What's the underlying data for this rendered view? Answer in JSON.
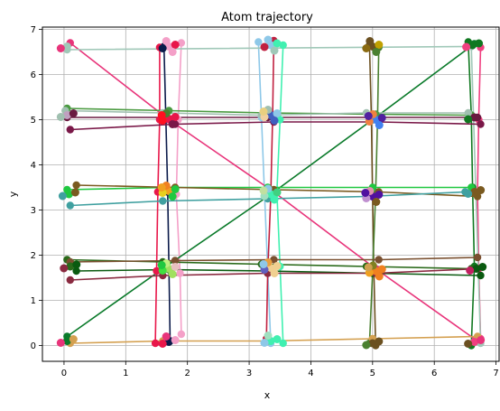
{
  "chart_data": {
    "type": "line",
    "title": "Atom trajectory",
    "xlabel": "x",
    "ylabel": "y",
    "xlim": [
      -0.35,
      7.05
    ],
    "ylim": [
      -0.35,
      7.05
    ],
    "xticks": [
      "0",
      "1",
      "2",
      "3",
      "4",
      "5",
      "6",
      "7"
    ],
    "yticks": [
      "0",
      "1",
      "2",
      "3",
      "4",
      "5",
      "6",
      "7"
    ],
    "grid": true,
    "series": [
      {
        "color": "#0b1a4a",
        "points": [
          [
            1.62,
            6.62
          ],
          [
            1.65,
            5.0
          ],
          [
            1.68,
            3.4
          ],
          [
            1.7,
            1.7
          ],
          [
            1.72,
            0.1
          ]
        ]
      },
      {
        "color": "#e8174a",
        "points": [
          [
            1.55,
            6.6
          ],
          [
            1.55,
            5.0
          ],
          [
            1.52,
            3.4
          ],
          [
            1.5,
            1.65
          ],
          [
            1.48,
            0.05
          ]
        ]
      },
      {
        "color": "#f4a0c8",
        "points": [
          [
            1.9,
            6.7
          ],
          [
            1.85,
            5.0
          ],
          [
            1.82,
            3.35
          ],
          [
            1.88,
            1.6
          ],
          [
            1.9,
            0.25
          ]
        ]
      },
      {
        "color": "#8ec8e8",
        "points": [
          [
            3.15,
            6.72
          ],
          [
            3.2,
            5.05
          ],
          [
            3.25,
            3.3
          ],
          [
            3.3,
            1.7
          ],
          [
            3.35,
            0.05
          ]
        ]
      },
      {
        "color": "#40f0b0",
        "points": [
          [
            3.55,
            6.65
          ],
          [
            3.5,
            5.0
          ],
          [
            3.45,
            3.4
          ],
          [
            3.5,
            1.75
          ],
          [
            3.55,
            0.05
          ]
        ]
      },
      {
        "color": "#c02040",
        "points": [
          [
            3.4,
            6.75
          ],
          [
            3.38,
            5.1
          ],
          [
            3.35,
            3.3
          ],
          [
            3.3,
            1.6
          ],
          [
            3.28,
            0.15
          ]
        ]
      },
      {
        "color": "#6b5020",
        "points": [
          [
            4.95,
            6.65
          ],
          [
            4.98,
            5.05
          ],
          [
            5.0,
            3.3
          ],
          [
            5.02,
            1.7
          ],
          [
            5.05,
            0.0
          ]
        ]
      },
      {
        "color": "#4a8030",
        "points": [
          [
            5.1,
            6.6
          ],
          [
            5.08,
            5.0
          ],
          [
            5.05,
            3.35
          ],
          [
            5.0,
            1.6
          ],
          [
            4.95,
            0.05
          ]
        ]
      },
      {
        "color": "#107820",
        "points": [
          [
            6.55,
            6.72
          ],
          [
            6.6,
            5.1
          ],
          [
            6.62,
            3.5
          ],
          [
            6.65,
            1.75
          ],
          [
            6.6,
            0.0
          ]
        ]
      },
      {
        "color": "#f04080",
        "points": [
          [
            6.75,
            6.6
          ],
          [
            6.72,
            5.0
          ],
          [
            6.7,
            3.4
          ],
          [
            6.72,
            1.7
          ],
          [
            6.75,
            0.15
          ]
        ]
      },
      {
        "color": "#e8347a",
        "points": [
          [
            0.1,
            6.7
          ],
          [
            1.7,
            5.0
          ],
          [
            3.4,
            3.4
          ],
          [
            5.05,
            1.7
          ],
          [
            6.7,
            0.1
          ]
        ]
      },
      {
        "color": "#0a7a2a",
        "points": [
          [
            0.05,
            0.2
          ],
          [
            1.6,
            1.7
          ],
          [
            3.3,
            3.3
          ],
          [
            5.0,
            5.0
          ],
          [
            6.65,
            6.68
          ]
        ]
      },
      {
        "color": "#a0c8b8",
        "points": [
          [
            0.05,
            6.55
          ],
          [
            6.6,
            6.62
          ],
          [
            6.75,
            0.05
          ]
        ]
      },
      {
        "color": "#6a1a40",
        "points": [
          [
            0.05,
            5.05
          ],
          [
            1.65,
            5.05
          ],
          [
            3.3,
            5.05
          ],
          [
            5.0,
            5.05
          ],
          [
            6.7,
            5.05
          ]
        ]
      },
      {
        "color": "#7a1848",
        "points": [
          [
            0.1,
            4.78
          ],
          [
            1.8,
            4.9
          ],
          [
            3.4,
            4.95
          ],
          [
            5.1,
            4.95
          ],
          [
            6.75,
            4.9
          ]
        ]
      },
      {
        "color": "#4a9a40",
        "points": [
          [
            0.05,
            5.25
          ],
          [
            1.7,
            5.2
          ],
          [
            3.3,
            5.15
          ],
          [
            5.05,
            5.12
          ],
          [
            6.6,
            5.1
          ]
        ]
      },
      {
        "color": "#a0c0b0",
        "points": [
          [
            0.02,
            5.2
          ],
          [
            1.6,
            5.15
          ],
          [
            3.2,
            5.1
          ],
          [
            4.9,
            5.15
          ],
          [
            6.55,
            5.15
          ]
        ]
      },
      {
        "color": "#20c840",
        "points": [
          [
            0.05,
            3.45
          ],
          [
            1.65,
            3.5
          ],
          [
            3.3,
            3.5
          ],
          [
            5.0,
            3.5
          ],
          [
            6.6,
            3.5
          ]
        ]
      },
      {
        "color": "#7a5a20",
        "points": [
          [
            0.2,
            3.55
          ],
          [
            1.8,
            3.5
          ],
          [
            3.4,
            3.45
          ],
          [
            5.1,
            3.4
          ],
          [
            6.7,
            3.3
          ]
        ]
      },
      {
        "color": "#40a0a0",
        "points": [
          [
            0.1,
            3.1
          ],
          [
            1.6,
            3.2
          ],
          [
            3.3,
            3.25
          ],
          [
            4.9,
            3.3
          ],
          [
            6.5,
            3.4
          ]
        ]
      },
      {
        "color": "#2a6a1a",
        "points": [
          [
            0.05,
            1.9
          ],
          [
            1.6,
            1.85
          ],
          [
            3.2,
            1.8
          ],
          [
            4.9,
            1.75
          ],
          [
            6.6,
            1.7
          ]
        ]
      },
      {
        "color": "#0a5a10",
        "points": [
          [
            0.2,
            1.65
          ],
          [
            1.7,
            1.68
          ],
          [
            3.3,
            1.65
          ],
          [
            5.0,
            1.6
          ],
          [
            6.75,
            1.55
          ]
        ]
      },
      {
        "color": "#7a5030",
        "points": [
          [
            0.1,
            1.85
          ],
          [
            1.8,
            1.88
          ],
          [
            3.4,
            1.9
          ],
          [
            5.1,
            1.9
          ],
          [
            6.7,
            1.95
          ]
        ]
      },
      {
        "color": "#8a2a40",
        "points": [
          [
            0.1,
            1.45
          ],
          [
            1.6,
            1.55
          ],
          [
            3.3,
            1.6
          ],
          [
            5.05,
            1.6
          ],
          [
            6.7,
            1.7
          ]
        ]
      },
      {
        "color": "#d4a050",
        "points": [
          [
            0.1,
            0.05
          ],
          [
            1.6,
            0.1
          ],
          [
            3.3,
            0.1
          ],
          [
            5.0,
            0.15
          ],
          [
            6.7,
            0.2
          ]
        ]
      }
    ],
    "clusters": [
      {
        "x": 1.7,
        "y": 6.62,
        "colors": [
          "#f4a0c8",
          "#0b1a4a",
          "#e8174a",
          "#f4a0c8",
          "#f4a0c8"
        ]
      },
      {
        "x": 1.7,
        "y": 5.02,
        "colors": [
          "#e8174a",
          "#ff1020",
          "#e8174a",
          "#4a8030",
          "#7a1848",
          "#ff1020"
        ]
      },
      {
        "x": 1.7,
        "y": 3.42,
        "colors": [
          "#f0a020",
          "#e8d020",
          "#20c840",
          "#f08020",
          "#20c840",
          "#f0a020"
        ]
      },
      {
        "x": 1.7,
        "y": 1.7,
        "colors": [
          "#a0e060",
          "#40e040",
          "#e8c0c0",
          "#c0f080",
          "#a0e060",
          "#20c840"
        ]
      },
      {
        "x": 1.7,
        "y": 0.08,
        "colors": [
          "#0b1a4a",
          "#e8174a",
          "#f4a0c8",
          "#e8347a"
        ]
      },
      {
        "x": 3.35,
        "y": 6.65,
        "colors": [
          "#8ec8e8",
          "#c02040",
          "#40f0b0",
          "#8ec8e8",
          "#a0c8b8"
        ]
      },
      {
        "x": 3.35,
        "y": 5.1,
        "colors": [
          "#4060c0",
          "#f0d0a0",
          "#8ec8e8",
          "#a0c0b0",
          "#4060c0",
          "#e8d080"
        ]
      },
      {
        "x": 3.35,
        "y": 3.35,
        "colors": [
          "#40f0b0",
          "#a0e0c0",
          "#40d080",
          "#8ec8e8",
          "#40f0b0",
          "#c0e0a0"
        ]
      },
      {
        "x": 3.35,
        "y": 1.72,
        "colors": [
          "#f0d090",
          "#6060c0",
          "#f0d090",
          "#e8a040",
          "#f0d090",
          "#8ec8e8"
        ]
      },
      {
        "x": 3.35,
        "y": 0.1,
        "colors": [
          "#40f0b0",
          "#8ec8e8",
          "#40f0b0",
          "#a0e0c0"
        ]
      },
      {
        "x": 5.0,
        "y": 6.62,
        "colors": [
          "#6b5020",
          "#8a6a10",
          "#c0a000",
          "#6b5020",
          "#4a8030"
        ]
      },
      {
        "x": 5.05,
        "y": 5.0,
        "colors": [
          "#4080f0",
          "#f08040",
          "#5020a0",
          "#f08040",
          "#4080f0",
          "#5020a0"
        ]
      },
      {
        "x": 5.0,
        "y": 3.3,
        "colors": [
          "#5010a0",
          "#c090d0",
          "#5010a0",
          "#e090b0",
          "#7a5a20",
          "#5010a0"
        ]
      },
      {
        "x": 5.05,
        "y": 1.65,
        "colors": [
          "#f08020",
          "#f0a020",
          "#f08020",
          "#808020",
          "#f08020",
          "#d0a050"
        ]
      },
      {
        "x": 5.0,
        "y": 0.05,
        "colors": [
          "#6b5020",
          "#4a8030",
          "#6b5020"
        ]
      },
      {
        "x": 6.62,
        "y": 6.65,
        "colors": [
          "#107820",
          "#f04080",
          "#107820"
        ]
      },
      {
        "x": 6.65,
        "y": 5.05,
        "colors": [
          "#6a1a40",
          "#107820"
        ]
      },
      {
        "x": 6.65,
        "y": 3.4,
        "colors": [
          "#7a5a20",
          "#40a0a0",
          "#7a5a20"
        ]
      },
      {
        "x": 6.68,
        "y": 1.7,
        "colors": [
          "#0a5a10",
          "#c02060",
          "#0a5a10"
        ]
      },
      {
        "x": 6.65,
        "y": 0.08,
        "colors": [
          "#f04080",
          "#6b5020",
          "#e8347a"
        ]
      },
      {
        "x": 0.05,
        "y": 6.62,
        "colors": [
          "#a0c8b8",
          "#e8347a"
        ]
      },
      {
        "x": 0.05,
        "y": 5.1,
        "colors": [
          "#c0a0c0",
          "#a0c0b0",
          "#6a1a40"
        ]
      },
      {
        "x": 0.08,
        "y": 3.35,
        "colors": [
          "#20c840",
          "#40a0a0",
          "#7a5a20"
        ]
      },
      {
        "x": 0.1,
        "y": 1.75,
        "colors": [
          "#2a6a1a",
          "#8a2a40",
          "#0a5a10"
        ]
      },
      {
        "x": 0.05,
        "y": 0.1,
        "colors": [
          "#0a7a2a",
          "#e8347a",
          "#d4a050"
        ]
      }
    ]
  }
}
